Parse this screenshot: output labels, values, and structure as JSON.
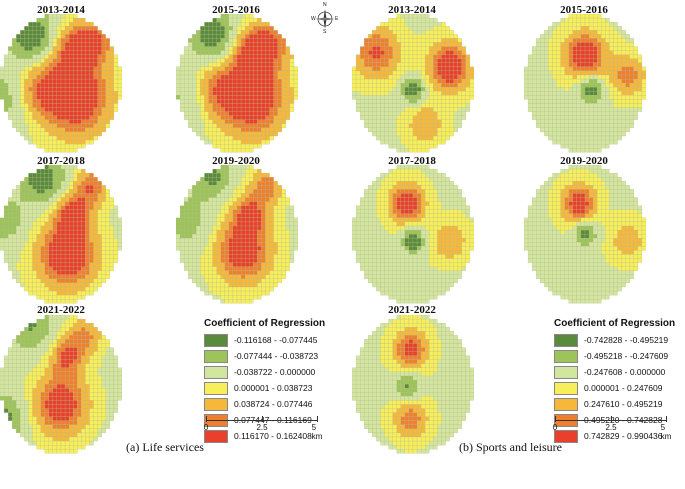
{
  "life_services": {
    "caption": "(a) Life services",
    "panels": [
      {
        "title": "2013-2014"
      },
      {
        "title": "2015-2016"
      },
      {
        "title": "2017-2018"
      },
      {
        "title": "2019-2020"
      },
      {
        "title": "2021-2022"
      }
    ],
    "legend": {
      "title": "Coefficient of Regression",
      "classes": [
        {
          "label": "-0.116168 - -0.077445",
          "color": "#5a8a3c"
        },
        {
          "label": "-0.077444 - -0.038723",
          "color": "#9cc45a"
        },
        {
          "label": "-0.038722 - 0.000000",
          "color": "#d2e6a0"
        },
        {
          "label": "0.000001 - 0.038723",
          "color": "#f6ef5a"
        },
        {
          "label": "0.038724 - 0.077446",
          "color": "#f5b83a"
        },
        {
          "label": "0.077447 - 0.116169",
          "color": "#ee7f2e"
        },
        {
          "label": "0.116170 - 0.162408",
          "color": "#e8402a"
        }
      ]
    },
    "scale": {
      "labels": [
        "0",
        "2.5",
        "5 km"
      ]
    }
  },
  "sports_leisure": {
    "caption": "(b) Sports and leisure",
    "panels": [
      {
        "title": "2013-2014"
      },
      {
        "title": "2015-2016"
      },
      {
        "title": "2017-2018"
      },
      {
        "title": "2019-2020"
      },
      {
        "title": "2021-2022"
      }
    ],
    "legend": {
      "title": "Coefficient of Regression",
      "classes": [
        {
          "label": "-0.742828 - -0.495219",
          "color": "#5a8a3c"
        },
        {
          "label": "-0.495218 - -0.247609",
          "color": "#9cc45a"
        },
        {
          "label": "-0.247608 - 0.000000",
          "color": "#d2e6a0"
        },
        {
          "label": "0.000001 - 0.247609",
          "color": "#f6ef5a"
        },
        {
          "label": "0.247610 - 0.495219",
          "color": "#f5b83a"
        },
        {
          "label": "0.495220 - 0.742828",
          "color": "#ee7f2e"
        },
        {
          "label": "0.742829 - 0.990436",
          "color": "#e8402a"
        }
      ]
    },
    "scale": {
      "labels": [
        "0",
        "2.5",
        "5 km"
      ]
    }
  },
  "compass": {
    "n": "N",
    "s": "S",
    "e": "E",
    "w": "W"
  }
}
